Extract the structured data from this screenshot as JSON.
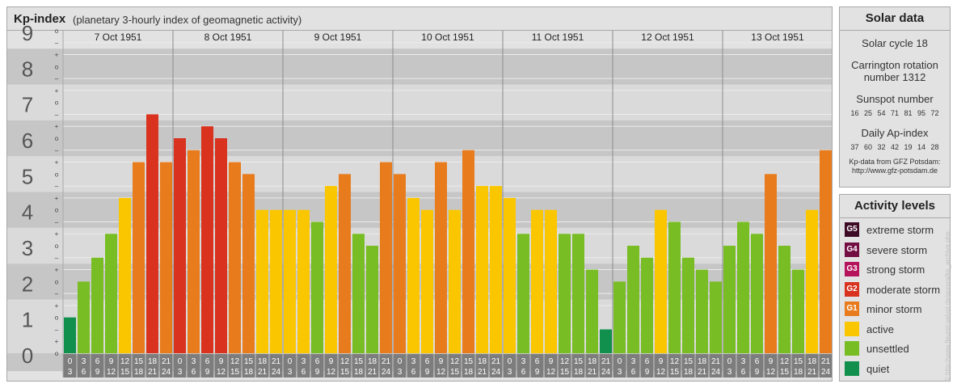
{
  "title": "Kp-index",
  "subtitle": "(planetary 3-hourly index of geomagnetic activity)",
  "chart_data": {
    "type": "bar",
    "ylim": [
      0,
      9
    ],
    "y_ticks": [
      "0",
      "1",
      "2",
      "3",
      "4",
      "5",
      "6",
      "7",
      "8",
      "9"
    ],
    "minor_tick_symbols": [
      "+",
      "–",
      "o"
    ],
    "days": [
      "7 Oct 1951",
      "8 Oct 1951",
      "9 Oct 1951",
      "10 Oct 1951",
      "11 Oct 1951",
      "12 Oct 1951",
      "13 Oct 1951"
    ],
    "interval_labels": [
      [
        "0",
        "3"
      ],
      [
        "3",
        "6"
      ],
      [
        "6",
        "9"
      ],
      [
        "9",
        "12"
      ],
      [
        "12",
        "15"
      ],
      [
        "15",
        "18"
      ],
      [
        "18",
        "21"
      ],
      [
        "21",
        "24"
      ]
    ],
    "values": [
      [
        1.0,
        2.0,
        2.667,
        3.333,
        4.333,
        5.333,
        6.667,
        5.333
      ],
      [
        6.0,
        5.667,
        6.333,
        6.0,
        5.333,
        5.0,
        4.0,
        4.0
      ],
      [
        4.0,
        4.0,
        3.667,
        4.667,
        5.0,
        3.333,
        3.0,
        5.333
      ],
      [
        5.0,
        4.333,
        4.0,
        5.333,
        4.0,
        5.667,
        4.667,
        4.667
      ],
      [
        4.333,
        3.333,
        4.0,
        4.0,
        3.333,
        3.333,
        2.333,
        0.667
      ],
      [
        2.0,
        3.0,
        2.667,
        4.0,
        3.667,
        2.667,
        2.333,
        2.0
      ],
      [
        3.0,
        3.667,
        3.333,
        5.0,
        3.0,
        2.333,
        4.0,
        5.667
      ]
    ]
  },
  "solar": {
    "heading": "Solar data",
    "cycle": "Solar cycle 18",
    "carrington_1": "Carrington rotation",
    "carrington_2": "number 1312",
    "sunspot_heading": "Sunspot number",
    "sunspot_values": "16 25 54 71 81 95 72",
    "ap_heading": "Daily Ap-index",
    "ap_values": "37 60 32 42 19 14 28",
    "source_1": "Kp-data from GFZ Potsdam:",
    "source_2": "http://www.gfz-potsdam.de"
  },
  "activity": {
    "heading": "Activity levels",
    "levels": [
      {
        "code": "G5",
        "label": "extreme storm",
        "color": "#3d0a26"
      },
      {
        "code": "G4",
        "label": "severe storm",
        "color": "#730e43"
      },
      {
        "code": "G3",
        "label": "strong storm",
        "color": "#b5135c"
      },
      {
        "code": "G2",
        "label": "moderate storm",
        "color": "#d9321e"
      },
      {
        "code": "G1",
        "label": "minor storm",
        "color": "#e87b1c"
      },
      {
        "code": "",
        "label": "active",
        "color": "#fac600"
      },
      {
        "code": "",
        "label": "unsettled",
        "color": "#78bd24"
      },
      {
        "code": "",
        "label": "quiet",
        "color": "#10904c"
      }
    ]
  },
  "copyright": "© http://www.fleuret-selyol.de/aurora/kp_archive.php"
}
